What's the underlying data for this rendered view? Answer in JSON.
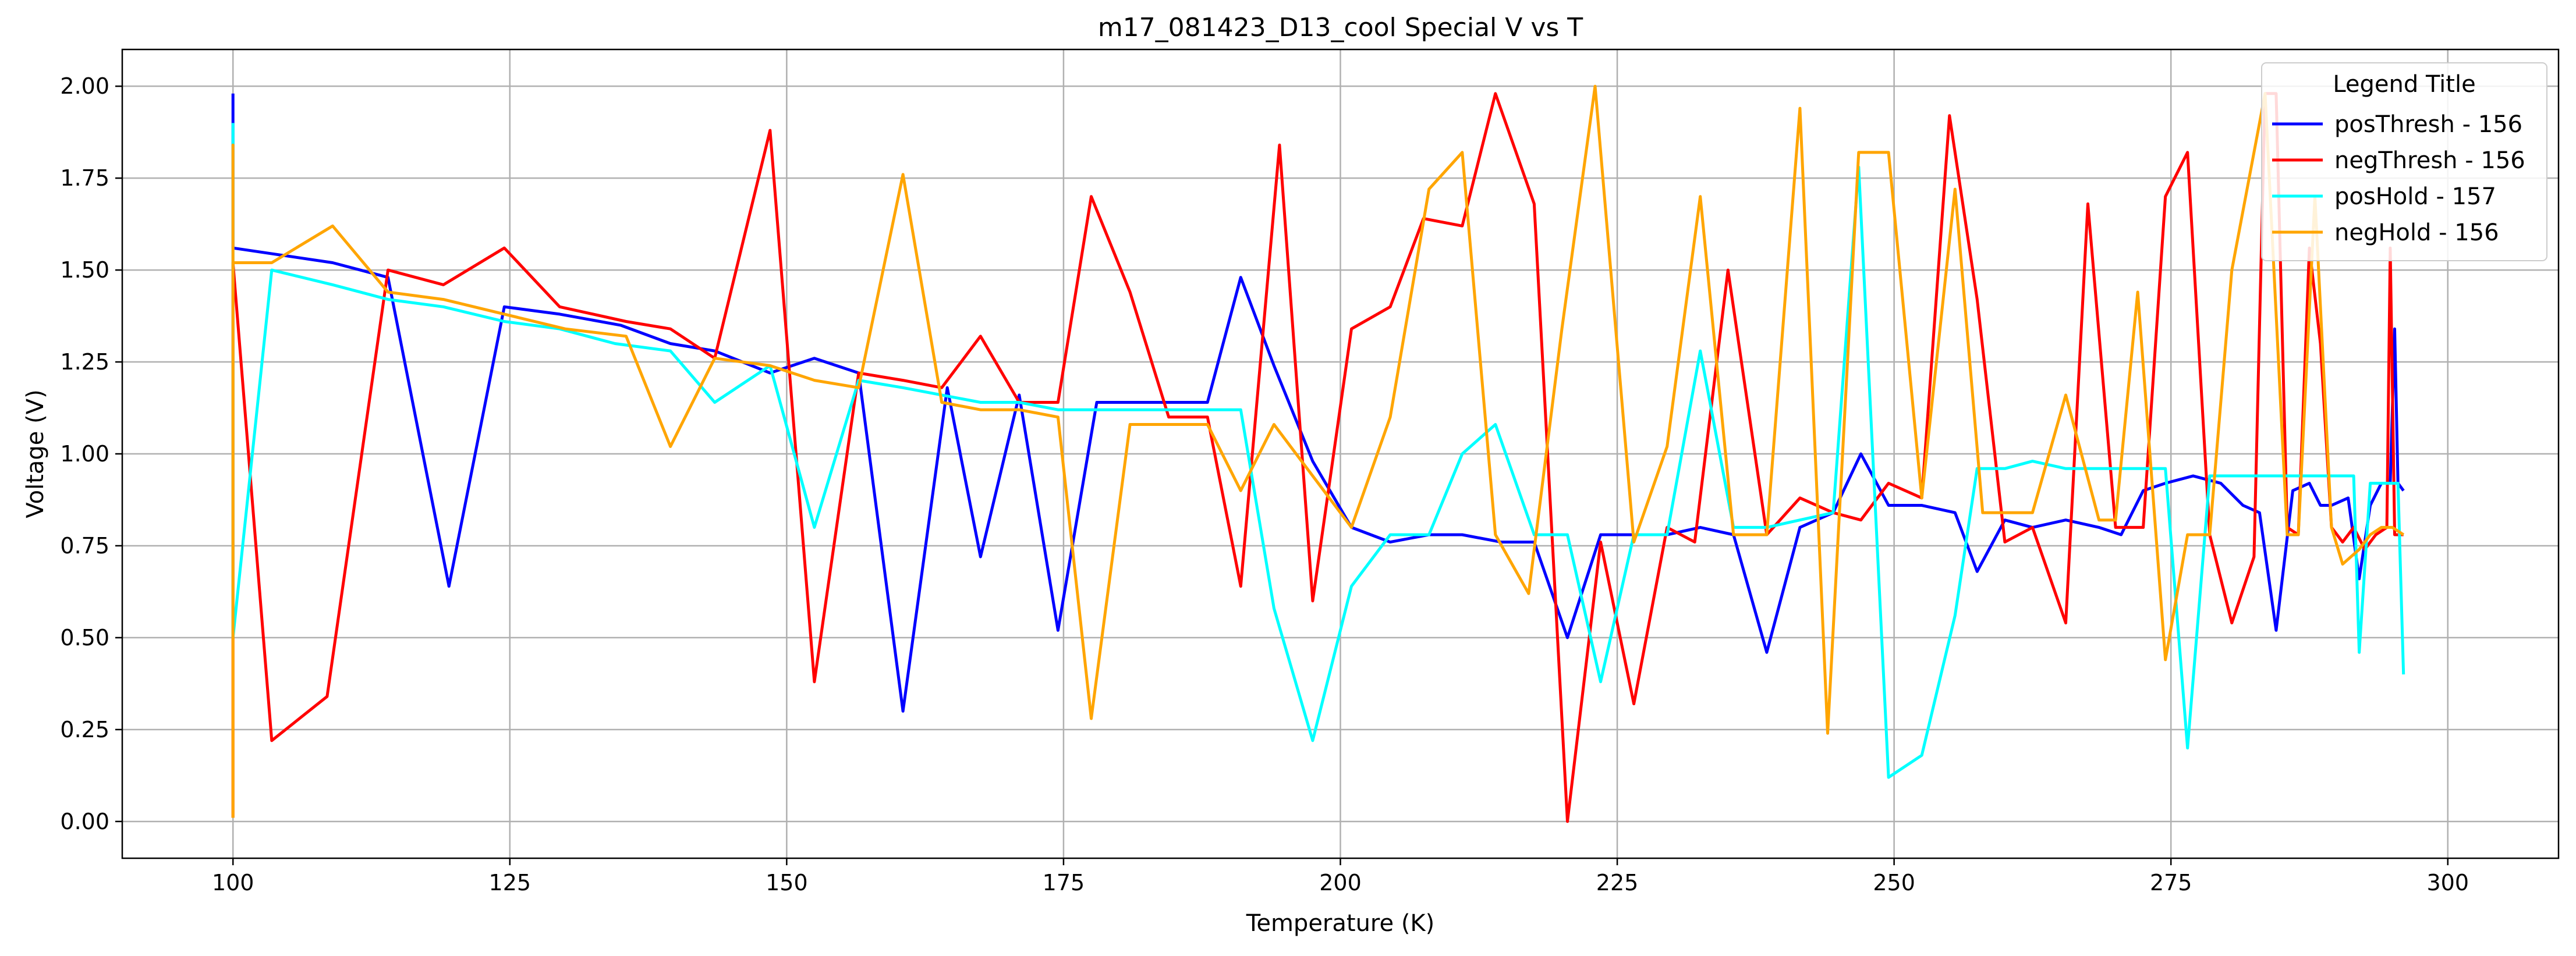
{
  "chart_data": {
    "type": "line",
    "title": "m17_081423_D13_cool Special V vs T",
    "xlabel": "Temperature (K)",
    "ylabel": "Voltage (V)",
    "xlim": [
      90,
      310
    ],
    "ylim": [
      -0.1,
      2.1
    ],
    "xticks": [
      100,
      125,
      150,
      175,
      200,
      225,
      250,
      275,
      300
    ],
    "yticks": [
      0.0,
      0.25,
      0.5,
      0.75,
      1.0,
      1.25,
      1.5,
      1.75,
      2.0
    ],
    "xtick_labels": [
      "100",
      "125",
      "150",
      "175",
      "200",
      "225",
      "250",
      "275",
      "300"
    ],
    "ytick_labels": [
      "0.00",
      "0.25",
      "0.50",
      "0.75",
      "1.00",
      "1.25",
      "1.50",
      "1.75",
      "2.00"
    ],
    "grid": true,
    "legend": {
      "title": "Legend Title",
      "position": "top-right"
    },
    "series": [
      {
        "name": "posThresh - 156",
        "color": "#0000ff",
        "points": [
          [
            100,
            1.98
          ],
          [
            100,
            1.8
          ],
          [
            100,
            1.56
          ],
          [
            109,
            1.52
          ],
          [
            114,
            1.48
          ],
          [
            119.5,
            0.64
          ],
          [
            124.5,
            1.4
          ],
          [
            129.5,
            1.38
          ],
          [
            135,
            1.35
          ],
          [
            139.5,
            1.3
          ],
          [
            143.5,
            1.28
          ],
          [
            148.5,
            1.22
          ],
          [
            152.5,
            1.26
          ],
          [
            156.5,
            1.22
          ],
          [
            160.5,
            0.3
          ],
          [
            164.5,
            1.18
          ],
          [
            167.5,
            0.72
          ],
          [
            171,
            1.16
          ],
          [
            174.5,
            0.52
          ],
          [
            178,
            1.14
          ],
          [
            184,
            1.14
          ],
          [
            188,
            1.14
          ],
          [
            191,
            1.48
          ],
          [
            194,
            1.24
          ],
          [
            197.5,
            0.98
          ],
          [
            201,
            0.8
          ],
          [
            204.5,
            0.76
          ],
          [
            208,
            0.78
          ],
          [
            211,
            0.78
          ],
          [
            214.5,
            0.76
          ],
          [
            217.5,
            0.76
          ],
          [
            220.5,
            0.5
          ],
          [
            223.5,
            0.78
          ],
          [
            227,
            0.78
          ],
          [
            229.5,
            0.78
          ],
          [
            232.5,
            0.8
          ],
          [
            235.5,
            0.78
          ],
          [
            238.5,
            0.46
          ],
          [
            241.5,
            0.8
          ],
          [
            244.5,
            0.84
          ],
          [
            247,
            1.0
          ],
          [
            249.5,
            0.86
          ],
          [
            252.5,
            0.86
          ],
          [
            255.5,
            0.84
          ],
          [
            257.5,
            0.68
          ],
          [
            260,
            0.82
          ],
          [
            262.5,
            0.8
          ],
          [
            265.5,
            0.82
          ],
          [
            268.5,
            0.8
          ],
          [
            270.5,
            0.78
          ],
          [
            272.5,
            0.9
          ],
          [
            274.5,
            0.92
          ],
          [
            277,
            0.94
          ],
          [
            279.5,
            0.92
          ],
          [
            281.5,
            0.86
          ],
          [
            283,
            0.84
          ],
          [
            284.5,
            0.52
          ],
          [
            286,
            0.9
          ],
          [
            287.5,
            0.92
          ],
          [
            288.5,
            0.86
          ],
          [
            289.5,
            0.86
          ],
          [
            291,
            0.88
          ],
          [
            292,
            0.66
          ],
          [
            293,
            0.86
          ],
          [
            294,
            0.92
          ],
          [
            294.8,
            0.92
          ],
          [
            295.2,
            1.34
          ],
          [
            295.5,
            0.92
          ],
          [
            296,
            0.9
          ]
        ]
      },
      {
        "name": "negThresh - 156",
        "color": "#ff0000",
        "points": [
          [
            100,
            0.01
          ],
          [
            100,
            1.52
          ],
          [
            103.5,
            0.22
          ],
          [
            108.5,
            0.34
          ],
          [
            114,
            1.5
          ],
          [
            119,
            1.46
          ],
          [
            124.5,
            1.56
          ],
          [
            129.5,
            1.4
          ],
          [
            135.5,
            1.36
          ],
          [
            139.5,
            1.34
          ],
          [
            143.5,
            1.26
          ],
          [
            148.5,
            1.88
          ],
          [
            152.5,
            0.38
          ],
          [
            156.5,
            1.22
          ],
          [
            160.5,
            1.2
          ],
          [
            164,
            1.18
          ],
          [
            167.5,
            1.32
          ],
          [
            171,
            1.14
          ],
          [
            174.5,
            1.14
          ],
          [
            177.5,
            1.7
          ],
          [
            181,
            1.44
          ],
          [
            184.5,
            1.1
          ],
          [
            188,
            1.1
          ],
          [
            191,
            0.64
          ],
          [
            194.5,
            1.84
          ],
          [
            197.5,
            0.6
          ],
          [
            201,
            1.34
          ],
          [
            204.5,
            1.4
          ],
          [
            207.5,
            1.64
          ],
          [
            211,
            1.62
          ],
          [
            214,
            1.98
          ],
          [
            217.5,
            1.68
          ],
          [
            220.5,
            0.0
          ],
          [
            223.5,
            0.76
          ],
          [
            226.5,
            0.32
          ],
          [
            229.5,
            0.8
          ],
          [
            232,
            0.76
          ],
          [
            235,
            1.5
          ],
          [
            238.5,
            0.78
          ],
          [
            241.5,
            0.88
          ],
          [
            244.5,
            0.84
          ],
          [
            247,
            0.82
          ],
          [
            249.5,
            0.92
          ],
          [
            252.5,
            0.88
          ],
          [
            255,
            1.92
          ],
          [
            257.5,
            1.42
          ],
          [
            260,
            0.76
          ],
          [
            262.5,
            0.8
          ],
          [
            265.5,
            0.54
          ],
          [
            267.5,
            1.68
          ],
          [
            270,
            0.8
          ],
          [
            272.5,
            0.8
          ],
          [
            274.5,
            1.7
          ],
          [
            276.5,
            1.82
          ],
          [
            278.5,
            0.78
          ],
          [
            280.5,
            0.54
          ],
          [
            282.5,
            0.72
          ],
          [
            283.5,
            1.98
          ],
          [
            284.5,
            1.98
          ],
          [
            285.5,
            0.8
          ],
          [
            286.5,
            0.78
          ],
          [
            287.5,
            1.56
          ],
          [
            288.5,
            1.3
          ],
          [
            289.5,
            0.8
          ],
          [
            290.5,
            0.76
          ],
          [
            291.5,
            0.8
          ],
          [
            292.5,
            0.74
          ],
          [
            293.5,
            0.78
          ],
          [
            294.5,
            0.8
          ],
          [
            294.8,
            1.56
          ],
          [
            295.2,
            0.78
          ],
          [
            296,
            0.78
          ]
        ]
      },
      {
        "name": "posHold - 157",
        "color": "#00ffff",
        "points": [
          [
            100,
            1.9
          ],
          [
            100,
            1.84
          ],
          [
            100,
            0.5
          ],
          [
            103.5,
            1.5
          ],
          [
            109,
            1.46
          ],
          [
            114,
            1.42
          ],
          [
            119,
            1.4
          ],
          [
            124.5,
            1.36
          ],
          [
            129.5,
            1.34
          ],
          [
            134.5,
            1.3
          ],
          [
            139.5,
            1.28
          ],
          [
            143.5,
            1.14
          ],
          [
            148.5,
            1.24
          ],
          [
            152.5,
            0.8
          ],
          [
            156.5,
            1.2
          ],
          [
            160.5,
            1.18
          ],
          [
            164,
            1.16
          ],
          [
            167.5,
            1.14
          ],
          [
            171,
            1.14
          ],
          [
            174.5,
            1.12
          ],
          [
            178,
            1.12
          ],
          [
            181,
            1.12
          ],
          [
            184.5,
            1.12
          ],
          [
            188,
            1.12
          ],
          [
            191,
            1.12
          ],
          [
            194,
            0.58
          ],
          [
            197.5,
            0.22
          ],
          [
            201,
            0.64
          ],
          [
            204.5,
            0.78
          ],
          [
            208,
            0.78
          ],
          [
            211,
            1.0
          ],
          [
            214,
            1.08
          ],
          [
            217.5,
            0.78
          ],
          [
            220.5,
            0.78
          ],
          [
            223.5,
            0.38
          ],
          [
            226.5,
            0.78
          ],
          [
            229.5,
            0.78
          ],
          [
            232.5,
            1.28
          ],
          [
            235.5,
            0.8
          ],
          [
            238.5,
            0.8
          ],
          [
            241.5,
            0.82
          ],
          [
            244.5,
            0.84
          ],
          [
            246.8,
            1.78
          ],
          [
            249.5,
            0.12
          ],
          [
            252.5,
            0.18
          ],
          [
            255.5,
            0.56
          ],
          [
            257.5,
            0.96
          ],
          [
            260,
            0.96
          ],
          [
            262.5,
            0.98
          ],
          [
            265.5,
            0.96
          ],
          [
            268.5,
            0.96
          ],
          [
            271,
            0.96
          ],
          [
            274.5,
            0.96
          ],
          [
            276.5,
            0.2
          ],
          [
            278.5,
            0.94
          ],
          [
            280.5,
            0.94
          ],
          [
            283,
            0.94
          ],
          [
            285.5,
            0.94
          ],
          [
            288,
            0.94
          ],
          [
            290.5,
            0.94
          ],
          [
            291.5,
            0.94
          ],
          [
            292,
            0.46
          ],
          [
            293,
            0.92
          ],
          [
            294,
            0.92
          ],
          [
            294.8,
            0.92
          ],
          [
            295.5,
            0.92
          ],
          [
            296,
            0.4
          ]
        ]
      },
      {
        "name": "negHold - 156",
        "color": "#ffa500",
        "points": [
          [
            100,
            0.01
          ],
          [
            100,
            1.84
          ],
          [
            100,
            1.52
          ],
          [
            103.5,
            1.52
          ],
          [
            109,
            1.62
          ],
          [
            114,
            1.44
          ],
          [
            119,
            1.42
          ],
          [
            124.5,
            1.38
          ],
          [
            130,
            1.34
          ],
          [
            135.5,
            1.32
          ],
          [
            139.5,
            1.02
          ],
          [
            143.5,
            1.26
          ],
          [
            148.5,
            1.24
          ],
          [
            152.5,
            1.2
          ],
          [
            156.5,
            1.18
          ],
          [
            160.5,
            1.76
          ],
          [
            164,
            1.14
          ],
          [
            167.5,
            1.12
          ],
          [
            171,
            1.12
          ],
          [
            174.5,
            1.1
          ],
          [
            177.5,
            0.28
          ],
          [
            181,
            1.08
          ],
          [
            184.5,
            1.08
          ],
          [
            188,
            1.08
          ],
          [
            191,
            0.9
          ],
          [
            194,
            1.08
          ],
          [
            197.5,
            0.94
          ],
          [
            201,
            0.8
          ],
          [
            204.5,
            1.1
          ],
          [
            208,
            1.72
          ],
          [
            211,
            1.82
          ],
          [
            214,
            0.78
          ],
          [
            217,
            0.62
          ],
          [
            220,
            1.34
          ],
          [
            223,
            2.0
          ],
          [
            226.5,
            0.76
          ],
          [
            229.5,
            1.02
          ],
          [
            232.5,
            1.7
          ],
          [
            235.5,
            0.78
          ],
          [
            238.5,
            0.78
          ],
          [
            241.5,
            1.94
          ],
          [
            244,
            0.24
          ],
          [
            246.8,
            1.82
          ],
          [
            249.5,
            1.82
          ],
          [
            252.5,
            0.88
          ],
          [
            255.5,
            1.72
          ],
          [
            258,
            0.84
          ],
          [
            260,
            0.84
          ],
          [
            262.5,
            0.84
          ],
          [
            265.5,
            1.16
          ],
          [
            268.5,
            0.82
          ],
          [
            270,
            0.82
          ],
          [
            272,
            1.44
          ],
          [
            274.5,
            0.44
          ],
          [
            276.5,
            0.78
          ],
          [
            278.5,
            0.78
          ],
          [
            280.5,
            1.5
          ],
          [
            283.5,
            1.98
          ],
          [
            285.5,
            0.78
          ],
          [
            286.5,
            0.78
          ],
          [
            288,
            1.7
          ],
          [
            289.5,
            0.8
          ],
          [
            290.5,
            0.7
          ],
          [
            292,
            0.74
          ],
          [
            293,
            0.78
          ],
          [
            294,
            0.8
          ],
          [
            295,
            0.8
          ],
          [
            296,
            0.78
          ]
        ]
      }
    ]
  }
}
